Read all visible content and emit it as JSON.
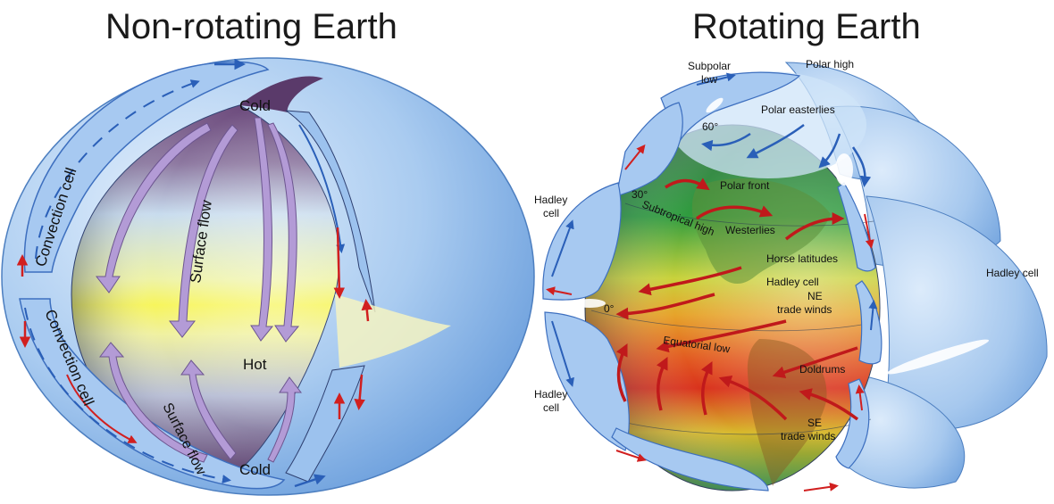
{
  "left": {
    "title": "Non-rotating Earth",
    "labels": {
      "cold_top": "Cold",
      "cold_bottom": "Cold",
      "hot": "Hot",
      "surface_flow_top": "Surface flow",
      "surface_flow_bottom": "Surface flow",
      "convection_top": "Convection cell",
      "convection_bottom": "Convection cell"
    }
  },
  "right": {
    "title": "Rotating Earth",
    "labels": {
      "subpolar_low": [
        "Subpolar",
        "low"
      ],
      "polar_high": "Polar high",
      "polar_easterlies": "Polar easterlies",
      "lat_60": "60°",
      "lat_30": "30°",
      "lat_0": "0°",
      "polar_front": "Polar front",
      "subtropical_high": "Subtropical high",
      "westerlies": "Westerlies",
      "horse_latitudes": "Horse latitudes",
      "hadley_cell_center": "Hadley cell",
      "ne_trade_winds": [
        "NE",
        "trade winds"
      ],
      "equatorial_low": "Equatorial low",
      "doldrums": "Doldrums",
      "se_trade_winds": [
        "SE",
        "trade winds"
      ],
      "hadley_cell_left_top": [
        "Hadley",
        "cell"
      ],
      "hadley_cell_left_bottom": [
        "Hadley",
        "cell"
      ],
      "hadley_cell_right": "Hadley cell"
    }
  },
  "colors": {
    "shell": "#7fb1e6",
    "shell_dark": "#3f78c4",
    "arrow_red": "#d11f1f",
    "arrow_blue": "#2a5fb8",
    "flow_arrow": "#b39bd6",
    "hot_band": "#f3f36a",
    "cold_cap": "#6e4a7a"
  }
}
